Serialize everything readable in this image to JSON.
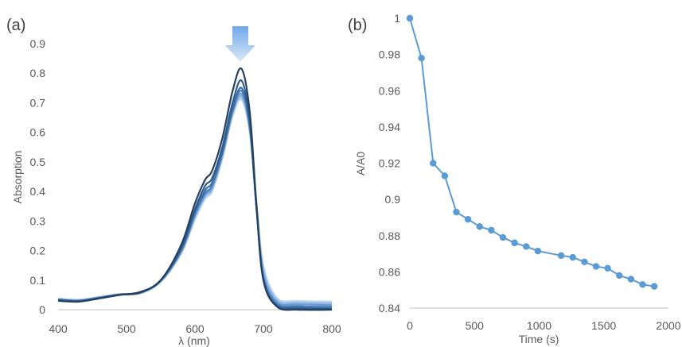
{
  "chart_data": [
    {
      "panel_label": "(a)",
      "type": "line",
      "xlabel": "λ (nm)",
      "ylabel": "Absorption",
      "xlim": [
        400,
        800
      ],
      "ylim": [
        0,
        0.9
      ],
      "x_ticks": [
        "400",
        "500",
        "600",
        "700",
        "800"
      ],
      "y_ticks": [
        "0",
        "0.1",
        "0.2",
        "0.3",
        "0.4",
        "0.5",
        "0.6",
        "0.7",
        "0.8",
        "0.9"
      ],
      "grid": false,
      "annotation": "down-arrow-icon",
      "colors": [
        "#243f60",
        "#2e5a87",
        "#3a6ea5",
        "#4f81bd",
        "#6a9bd1",
        "#8db3e2",
        "#a9c7ea",
        "#c5d9f1"
      ],
      "series": [
        {
          "x": [
            400,
            430,
            460,
            490,
            520,
            550,
            580,
            600,
            615,
            625,
            640,
            655,
            668,
            680,
            690,
            700,
            720,
            750,
            800
          ],
          "values": [
            0.03,
            0.027,
            0.038,
            0.05,
            0.06,
            0.1,
            0.22,
            0.36,
            0.44,
            0.47,
            0.58,
            0.74,
            0.815,
            0.67,
            0.35,
            0.1,
            0.01,
            0.0,
            0.0
          ]
        },
        {
          "x": [
            400,
            430,
            460,
            490,
            520,
            550,
            580,
            600,
            615,
            625,
            640,
            655,
            668,
            680,
            690,
            700,
            720,
            750,
            800
          ],
          "values": [
            0.032,
            0.028,
            0.039,
            0.05,
            0.058,
            0.1,
            0.21,
            0.34,
            0.42,
            0.445,
            0.55,
            0.7,
            0.775,
            0.64,
            0.34,
            0.1,
            0.012,
            0.004,
            0.002
          ]
        },
        {
          "x": [
            400,
            430,
            460,
            490,
            520,
            550,
            580,
            600,
            615,
            625,
            640,
            655,
            668,
            680,
            690,
            700,
            720,
            750,
            800
          ],
          "values": [
            0.033,
            0.029,
            0.04,
            0.051,
            0.058,
            0.099,
            0.205,
            0.33,
            0.405,
            0.43,
            0.535,
            0.68,
            0.75,
            0.625,
            0.34,
            0.105,
            0.015,
            0.008,
            0.005
          ]
        },
        {
          "x": [
            400,
            430,
            460,
            490,
            520,
            550,
            580,
            600,
            615,
            625,
            640,
            655,
            668,
            680,
            690,
            700,
            720,
            750,
            800
          ],
          "values": [
            0.034,
            0.03,
            0.04,
            0.051,
            0.057,
            0.098,
            0.2,
            0.325,
            0.395,
            0.42,
            0.53,
            0.675,
            0.74,
            0.62,
            0.34,
            0.11,
            0.02,
            0.012,
            0.01
          ]
        },
        {
          "x": [
            400,
            430,
            460,
            490,
            520,
            550,
            580,
            600,
            615,
            625,
            640,
            655,
            668,
            680,
            690,
            700,
            720,
            750,
            800
          ],
          "values": [
            0.035,
            0.031,
            0.041,
            0.052,
            0.057,
            0.097,
            0.198,
            0.32,
            0.39,
            0.415,
            0.525,
            0.67,
            0.73,
            0.615,
            0.345,
            0.12,
            0.025,
            0.018,
            0.015
          ]
        },
        {
          "x": [
            400,
            430,
            460,
            490,
            520,
            550,
            580,
            600,
            615,
            625,
            640,
            655,
            668,
            680,
            690,
            700,
            720,
            750,
            800
          ],
          "values": [
            0.036,
            0.032,
            0.042,
            0.052,
            0.056,
            0.096,
            0.195,
            0.315,
            0.385,
            0.41,
            0.52,
            0.665,
            0.722,
            0.61,
            0.35,
            0.13,
            0.03,
            0.022,
            0.02
          ]
        },
        {
          "x": [
            400,
            430,
            460,
            490,
            520,
            550,
            580,
            600,
            615,
            625,
            640,
            655,
            668,
            680,
            690,
            700,
            720,
            750,
            800
          ],
          "values": [
            0.037,
            0.033,
            0.042,
            0.052,
            0.056,
            0.095,
            0.193,
            0.31,
            0.38,
            0.405,
            0.515,
            0.66,
            0.715,
            0.605,
            0.355,
            0.14,
            0.035,
            0.026,
            0.024
          ]
        },
        {
          "x": [
            400,
            430,
            460,
            490,
            520,
            550,
            580,
            600,
            615,
            625,
            640,
            655,
            668,
            680,
            690,
            700,
            720,
            750,
            800
          ],
          "values": [
            0.038,
            0.034,
            0.043,
            0.053,
            0.055,
            0.094,
            0.19,
            0.305,
            0.375,
            0.4,
            0.51,
            0.655,
            0.71,
            0.6,
            0.36,
            0.15,
            0.04,
            0.03,
            0.028
          ]
        }
      ]
    },
    {
      "panel_label": "(b)",
      "type": "line",
      "xlabel": "Time (s)",
      "ylabel": "A/A0",
      "xlim": [
        0,
        2000
      ],
      "ylim": [
        0.84,
        1
      ],
      "x_ticks": [
        "0",
        "500",
        "1000",
        "1500",
        "2000"
      ],
      "y_ticks": [
        "0.84",
        "0.86",
        "0.88",
        "0.9",
        "0.92",
        "0.94",
        "0.96",
        "0.98",
        "1"
      ],
      "grid": false,
      "markers": true,
      "color": "#5b9bd5",
      "series": [
        {
          "x": [
            0,
            90,
            180,
            270,
            360,
            450,
            540,
            630,
            720,
            810,
            900,
            990,
            1170,
            1260,
            1350,
            1440,
            1530,
            1620,
            1710,
            1800,
            1890
          ],
          "values": [
            1.0,
            0.978,
            0.92,
            0.913,
            0.893,
            0.889,
            0.885,
            0.883,
            0.879,
            0.876,
            0.874,
            0.8715,
            0.869,
            0.868,
            0.8655,
            0.863,
            0.862,
            0.858,
            0.856,
            0.853,
            0.852
          ]
        }
      ]
    }
  ]
}
